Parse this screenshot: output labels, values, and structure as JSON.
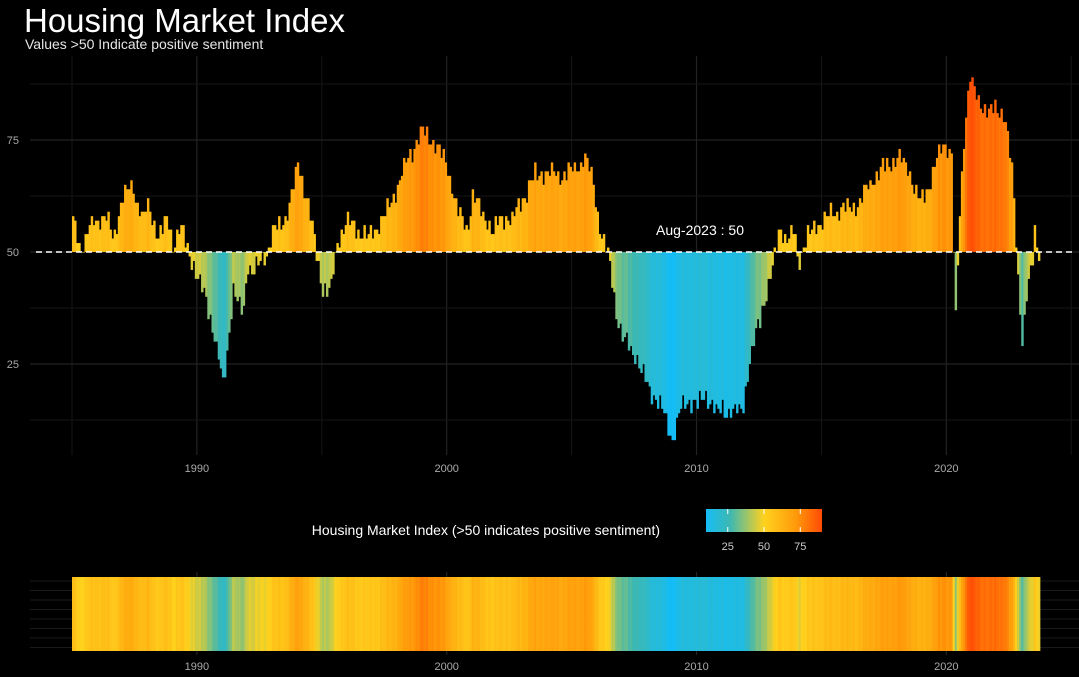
{
  "chart_data": {
    "type": "bar",
    "title": "Housing Market Index",
    "subtitle": "Values >50 Indicate positive sentiment",
    "baseline": 50,
    "annotation": "Aug-2023 : 50",
    "xlim": [
      1985,
      2023.75
    ],
    "ylim": [
      5,
      93
    ],
    "x_ticks": [
      1990,
      2000,
      2010,
      2020
    ],
    "x_tick_labels": [
      "1990",
      "2000",
      "2010",
      "2020"
    ],
    "y_ticks": [
      25,
      50,
      75
    ],
    "y_tick_labels": [
      "25",
      "50",
      "75"
    ],
    "legend": {
      "title": "Housing Market Index (>50 indicates positive sentiment)",
      "range": [
        10,
        90
      ],
      "ticks": [
        25,
        50,
        75
      ],
      "tick_labels": [
        "25",
        "50",
        "75"
      ]
    },
    "colors": {
      "low": "#14bdf5",
      "mid_low": "#3fb8b0",
      "mid": "#ffd21e",
      "mid_high": "#ff9a0a",
      "high": "#ff4a05",
      "baseline": "#ffffff",
      "grid": "#222222"
    },
    "series": [
      {
        "name": "Housing Market Index",
        "keyframes": [
          [
            1985.0,
            57
          ],
          [
            1985.3,
            50
          ],
          [
            1985.6,
            55
          ],
          [
            1986.0,
            57
          ],
          [
            1986.3,
            59
          ],
          [
            1986.6,
            52
          ],
          [
            1987.0,
            63
          ],
          [
            1987.4,
            64
          ],
          [
            1987.8,
            58
          ],
          [
            1988.0,
            60
          ],
          [
            1988.4,
            54
          ],
          [
            1988.8,
            57
          ],
          [
            1989.0,
            52
          ],
          [
            1989.3,
            56
          ],
          [
            1989.5,
            52
          ],
          [
            1989.8,
            48
          ],
          [
            1990.0,
            44
          ],
          [
            1990.3,
            40
          ],
          [
            1990.6,
            33
          ],
          [
            1990.9,
            24
          ],
          [
            1991.0,
            20
          ],
          [
            1991.2,
            29
          ],
          [
            1991.4,
            42
          ],
          [
            1991.6,
            38
          ],
          [
            1991.8,
            36
          ],
          [
            1992.0,
            48
          ],
          [
            1992.2,
            45
          ],
          [
            1992.5,
            48
          ],
          [
            1992.8,
            50
          ],
          [
            1993.0,
            54
          ],
          [
            1993.5,
            58
          ],
          [
            1993.8,
            63
          ],
          [
            1994.0,
            70
          ],
          [
            1994.2,
            66
          ],
          [
            1994.5,
            58
          ],
          [
            1994.8,
            48
          ],
          [
            1995.0,
            42
          ],
          [
            1995.3,
            41
          ],
          [
            1995.6,
            53
          ],
          [
            1996.0,
            57
          ],
          [
            1996.4,
            55
          ],
          [
            1996.8,
            53
          ],
          [
            1997.0,
            55
          ],
          [
            1997.5,
            58
          ],
          [
            1998.0,
            65
          ],
          [
            1998.5,
            72
          ],
          [
            1999.0,
            77
          ],
          [
            1999.5,
            74
          ],
          [
            2000.0,
            69
          ],
          [
            2000.4,
            59
          ],
          [
            2000.8,
            55
          ],
          [
            2001.0,
            63
          ],
          [
            2001.3,
            59
          ],
          [
            2001.6,
            57
          ],
          [
            2001.8,
            54
          ],
          [
            2002.0,
            56
          ],
          [
            2002.3,
            58
          ],
          [
            2002.6,
            57
          ],
          [
            2003.0,
            62
          ],
          [
            2003.5,
            67
          ],
          [
            2004.0,
            68
          ],
          [
            2004.5,
            67
          ],
          [
            2005.0,
            68
          ],
          [
            2005.5,
            71
          ],
          [
            2005.8,
            66
          ],
          [
            2006.0,
            58
          ],
          [
            2006.2,
            53
          ],
          [
            2006.4,
            50
          ],
          [
            2006.6,
            43
          ],
          [
            2006.8,
            35
          ],
          [
            2007.0,
            31
          ],
          [
            2007.5,
            27
          ],
          [
            2008.0,
            20
          ],
          [
            2008.5,
            16
          ],
          [
            2008.8,
            11
          ],
          [
            2009.0,
            8
          ],
          [
            2009.3,
            15
          ],
          [
            2009.6,
            17
          ],
          [
            2010.0,
            16
          ],
          [
            2010.4,
            18
          ],
          [
            2010.8,
            14
          ],
          [
            2011.0,
            15
          ],
          [
            2011.5,
            14
          ],
          [
            2011.8,
            15
          ],
          [
            2012.0,
            23
          ],
          [
            2012.4,
            33
          ],
          [
            2012.8,
            42
          ],
          [
            2013.0,
            46
          ],
          [
            2013.3,
            56
          ],
          [
            2013.6,
            52
          ],
          [
            2013.9,
            55
          ],
          [
            2014.0,
            48
          ],
          [
            2014.3,
            52
          ],
          [
            2014.6,
            55
          ],
          [
            2015.0,
            57
          ],
          [
            2015.5,
            59
          ],
          [
            2016.0,
            60
          ],
          [
            2016.5,
            61
          ],
          [
            2017.0,
            66
          ],
          [
            2017.5,
            69
          ],
          [
            2018.0,
            71
          ],
          [
            2018.5,
            68
          ],
          [
            2018.9,
            61
          ],
          [
            2019.2,
            64
          ],
          [
            2019.6,
            71
          ],
          [
            2019.9,
            74
          ],
          [
            2020.2,
            72
          ],
          [
            2020.3,
            30
          ],
          [
            2020.5,
            58
          ],
          [
            2020.7,
            78
          ],
          [
            2020.9,
            90
          ],
          [
            2021.2,
            83
          ],
          [
            2021.6,
            82
          ],
          [
            2022.0,
            81
          ],
          [
            2022.3,
            81
          ],
          [
            2022.6,
            67
          ],
          [
            2022.8,
            47
          ],
          [
            2023.0,
            31
          ],
          [
            2023.2,
            42
          ],
          [
            2023.4,
            46
          ],
          [
            2023.5,
            55
          ],
          [
            2023.6,
            50
          ]
        ]
      }
    ]
  }
}
